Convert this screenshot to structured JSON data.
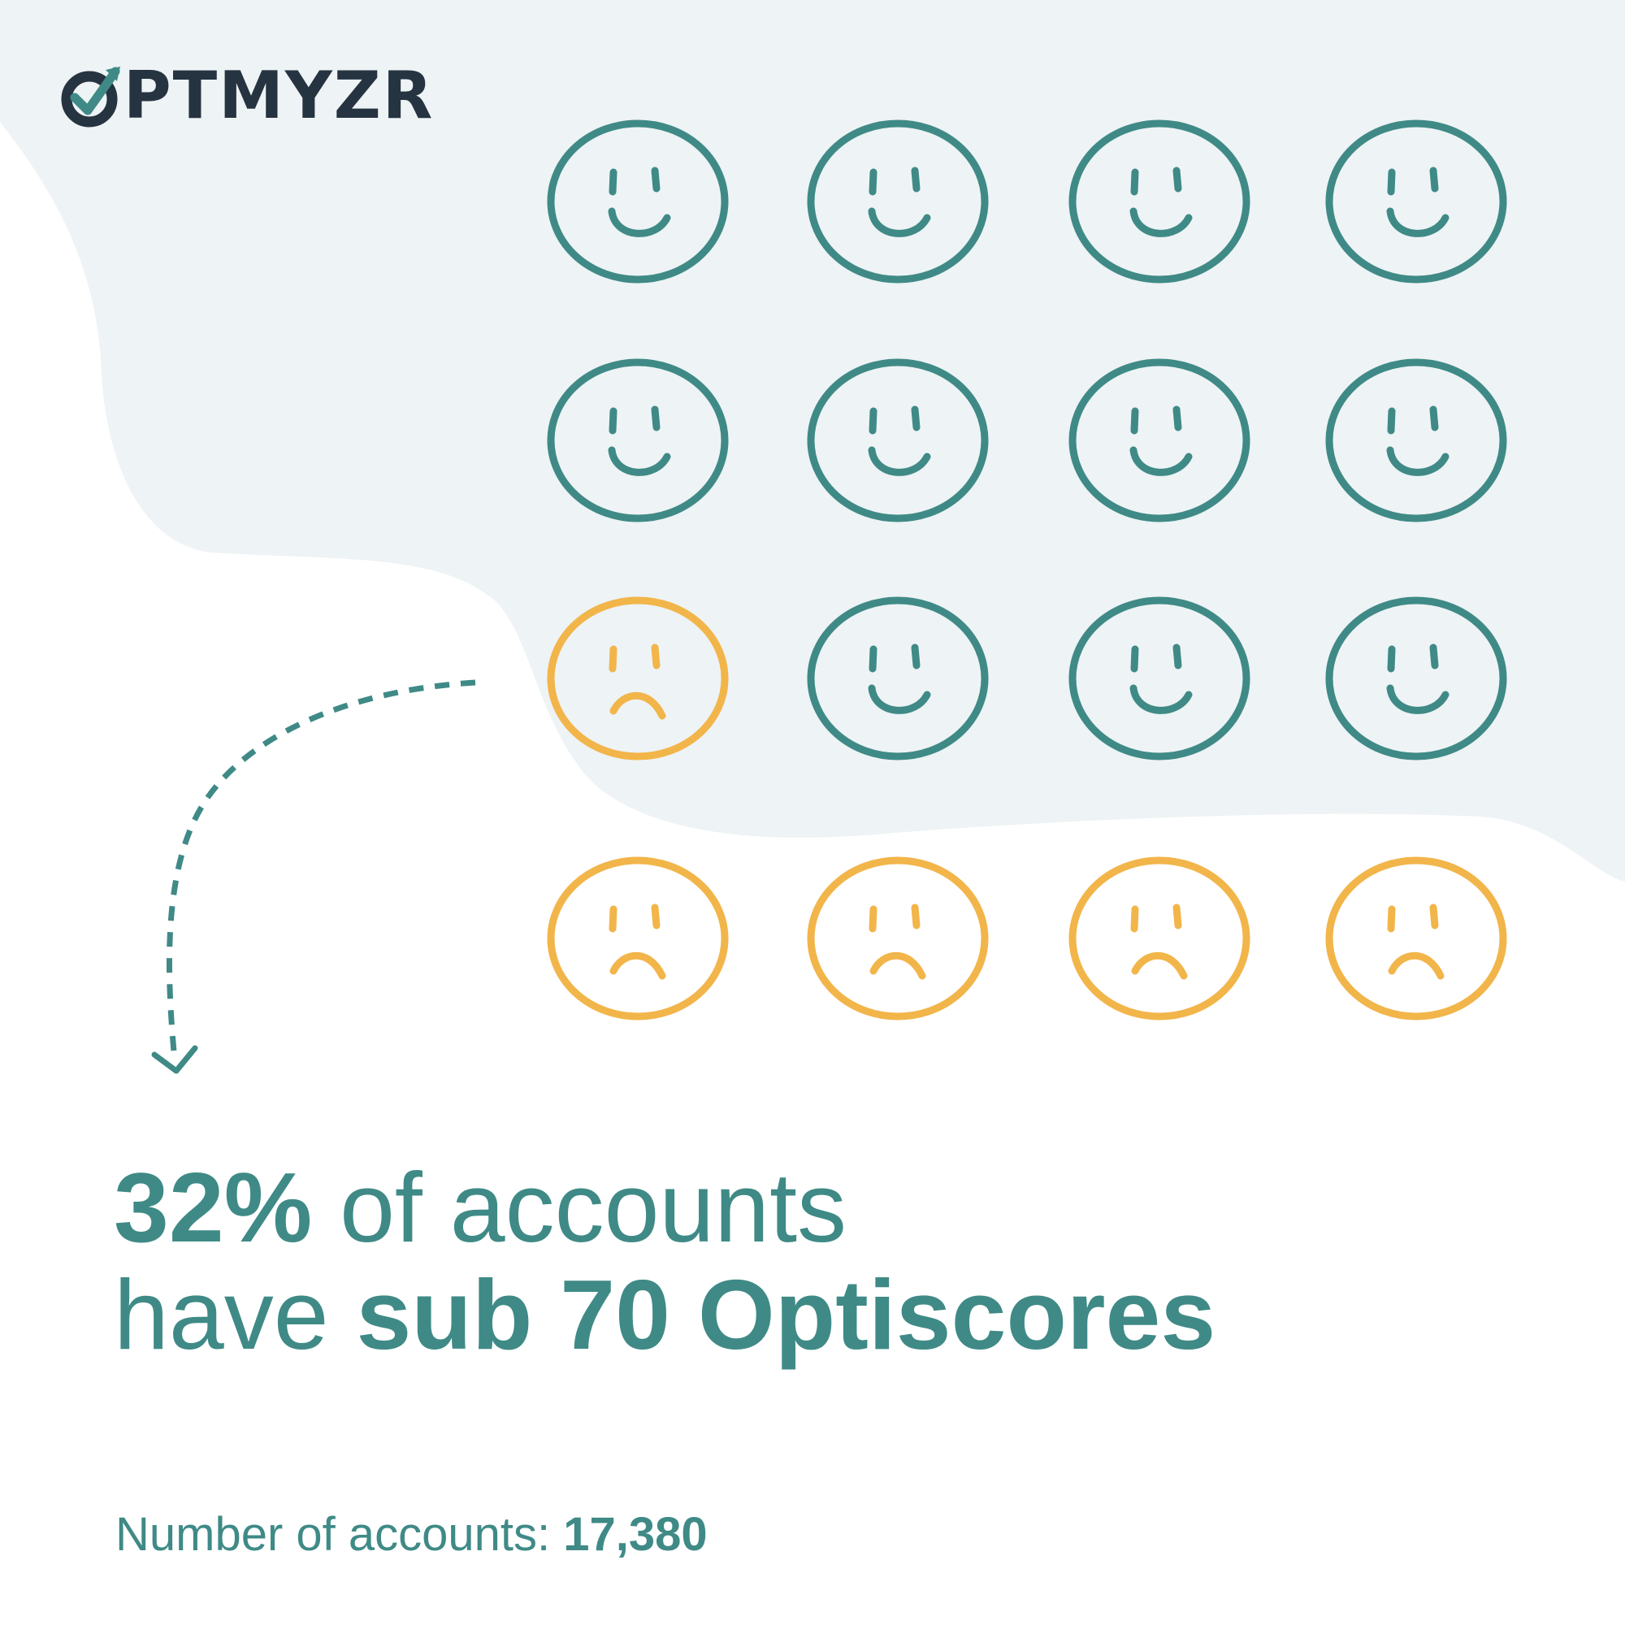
{
  "brand": {
    "name": "PTMYZR",
    "text_color": "#263340",
    "mark_color": "#263340",
    "check_color": "#3f8a86"
  },
  "infographic": {
    "face_rows": [
      [
        "happy",
        "happy",
        "happy",
        "happy"
      ],
      [
        "happy",
        "happy",
        "happy",
        "happy"
      ],
      [
        "sad",
        "happy",
        "happy",
        "happy"
      ],
      [
        "sad",
        "sad",
        "sad",
        "sad"
      ]
    ],
    "happy_count": 11,
    "sad_count": 5,
    "happy_color": "#3f8a86",
    "sad_color": "#f2b54a",
    "background_blob_color": "#eef3f5",
    "arrow_color": "#3f8a86"
  },
  "headline": {
    "percent": "32%",
    "text_1": " of accounts",
    "text_2": "have ",
    "emphasis": "sub 70 Optiscores",
    "color": "#3f8a86"
  },
  "footnote": {
    "label": "Number of accounts: ",
    "value": "17,380"
  }
}
